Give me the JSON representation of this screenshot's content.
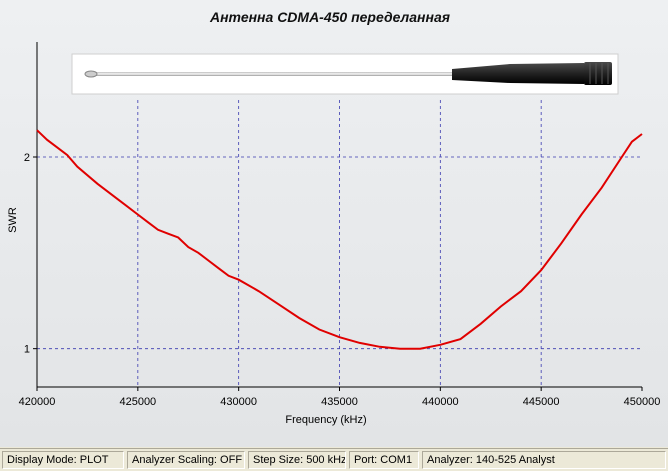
{
  "chart_data": {
    "type": "line",
    "title": "Антенна CDMA-450 переделанная",
    "xlabel": "Frequency (kHz)",
    "ylabel": "SWR",
    "xlim": [
      420000,
      450000
    ],
    "ylim": [
      0.8,
      2.6
    ],
    "x_ticks": [
      "420000",
      "425000",
      "430000",
      "435000",
      "440000",
      "445000",
      "450000"
    ],
    "y_ticks": [
      "1",
      "2"
    ],
    "x_tick_values": [
      420000,
      425000,
      430000,
      435000,
      440000,
      445000,
      450000
    ],
    "y_tick_values": [
      1,
      2
    ],
    "grid": "dashed",
    "series": [
      {
        "color": "#e00000",
        "x": [
          420000,
          420500,
          421000,
          421500,
          422000,
          423000,
          424000,
          425000,
          425500,
          426000,
          426500,
          427000,
          427500,
          428000,
          428500,
          429000,
          429500,
          430000,
          431000,
          432000,
          433000,
          434000,
          435000,
          436000,
          437000,
          438000,
          439000,
          440000,
          441000,
          442000,
          443000,
          444000,
          445000,
          446000,
          447000,
          448000,
          449000,
          449500,
          450000
        ],
        "y": [
          2.14,
          2.09,
          2.05,
          2.01,
          1.95,
          1.86,
          1.78,
          1.7,
          1.66,
          1.62,
          1.6,
          1.58,
          1.53,
          1.5,
          1.46,
          1.42,
          1.38,
          1.36,
          1.3,
          1.23,
          1.16,
          1.1,
          1.06,
          1.03,
          1.01,
          1.0,
          1.0,
          1.02,
          1.05,
          1.13,
          1.22,
          1.3,
          1.41,
          1.55,
          1.7,
          1.84,
          2.0,
          2.08,
          2.12
        ]
      }
    ]
  },
  "status_bar": {
    "display_mode": "Display Mode: PLOT",
    "analyzer_scaling": "Analyzer Scaling: OFF",
    "step_size": "Step Size: 500 kHz",
    "port": "Port: COM1",
    "analyzer": "Analyzer: 140-525 Analyst"
  },
  "colors": {
    "series": "#e00000",
    "grid": "#3a3ab0",
    "background": "#e8eaec",
    "status_bar": "#ece9d8"
  },
  "icons": {
    "antenna_photo": "antenna-photo"
  }
}
